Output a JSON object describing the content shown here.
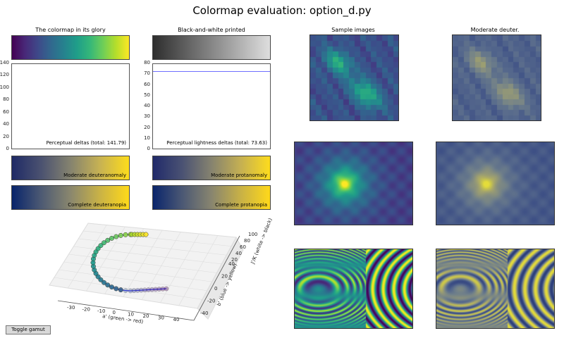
{
  "title": "Colormap evaluation: option_d.py",
  "colors": {
    "viridis": [
      "#440154",
      "#482878",
      "#3e4989",
      "#31688e",
      "#26828e",
      "#1f9e89",
      "#35b779",
      "#6ece58",
      "#b5de2b",
      "#fde725"
    ],
    "grayscale": [
      "#2e2e2e",
      "#dedede"
    ],
    "deuteranomaly": [
      "#1f2a66",
      "#4b5270",
      "#85836f",
      "#c7b253",
      "#fddc1c"
    ],
    "deuteranopia": [
      "#08246b",
      "#4d5a73",
      "#8a876e",
      "#c9b246",
      "#ffd91a"
    ],
    "protanomaly": [
      "#212a6a",
      "#4a5273",
      "#86836f",
      "#c5b052",
      "#fedc1d"
    ],
    "protanopia": [
      "#0a256c",
      "#4b5874",
      "#88856f",
      "#c8b146",
      "#ffd81a"
    ],
    "line": "#6f6fff"
  },
  "panels": {
    "glory_label": "The colormap in its glory",
    "bw_label": "Black-and-white printed",
    "sample_label": "Sample images",
    "deuter_label": "Moderate deuter.",
    "mod_deuter": "Moderate deuteranomaly",
    "comp_deuter": "Complete deuteranopia",
    "mod_prot": "Moderate protanomaly",
    "comp_prot": "Complete protanopia"
  },
  "chart_data": [
    {
      "type": "line",
      "title": "",
      "annotation": "Perceptual deltas (total: 141.79)",
      "ylim": [
        0,
        140
      ],
      "yticks": [
        "0",
        "20",
        "40",
        "60",
        "80",
        "100",
        "120",
        "140"
      ],
      "series": []
    },
    {
      "type": "line",
      "title": "",
      "annotation": "Perceptual lightness deltas (total: 73.63)",
      "ylim": [
        0,
        80
      ],
      "yticks": [
        "0",
        "10",
        "20",
        "30",
        "40",
        "50",
        "60",
        "70",
        "80"
      ],
      "series": [
        {
          "values": [
            73.63,
            73.63
          ]
        }
      ]
    },
    {
      "type": "scatter",
      "projection": "3d",
      "xlabel": "a' (green -> red)",
      "ylabel": "b' (blue -> yellow)",
      "zlabel": "J'/K (white -> black)",
      "xticks": [
        "-30",
        "-20",
        "-10",
        "0",
        "10",
        "20",
        "30",
        "40"
      ],
      "yticks": [
        "-40",
        "-20",
        "0",
        "20",
        "40"
      ],
      "zticks": [
        "20",
        "40",
        "60",
        "80",
        "100"
      ]
    }
  ],
  "button": {
    "toggle_gamut": "Toggle gamut"
  }
}
